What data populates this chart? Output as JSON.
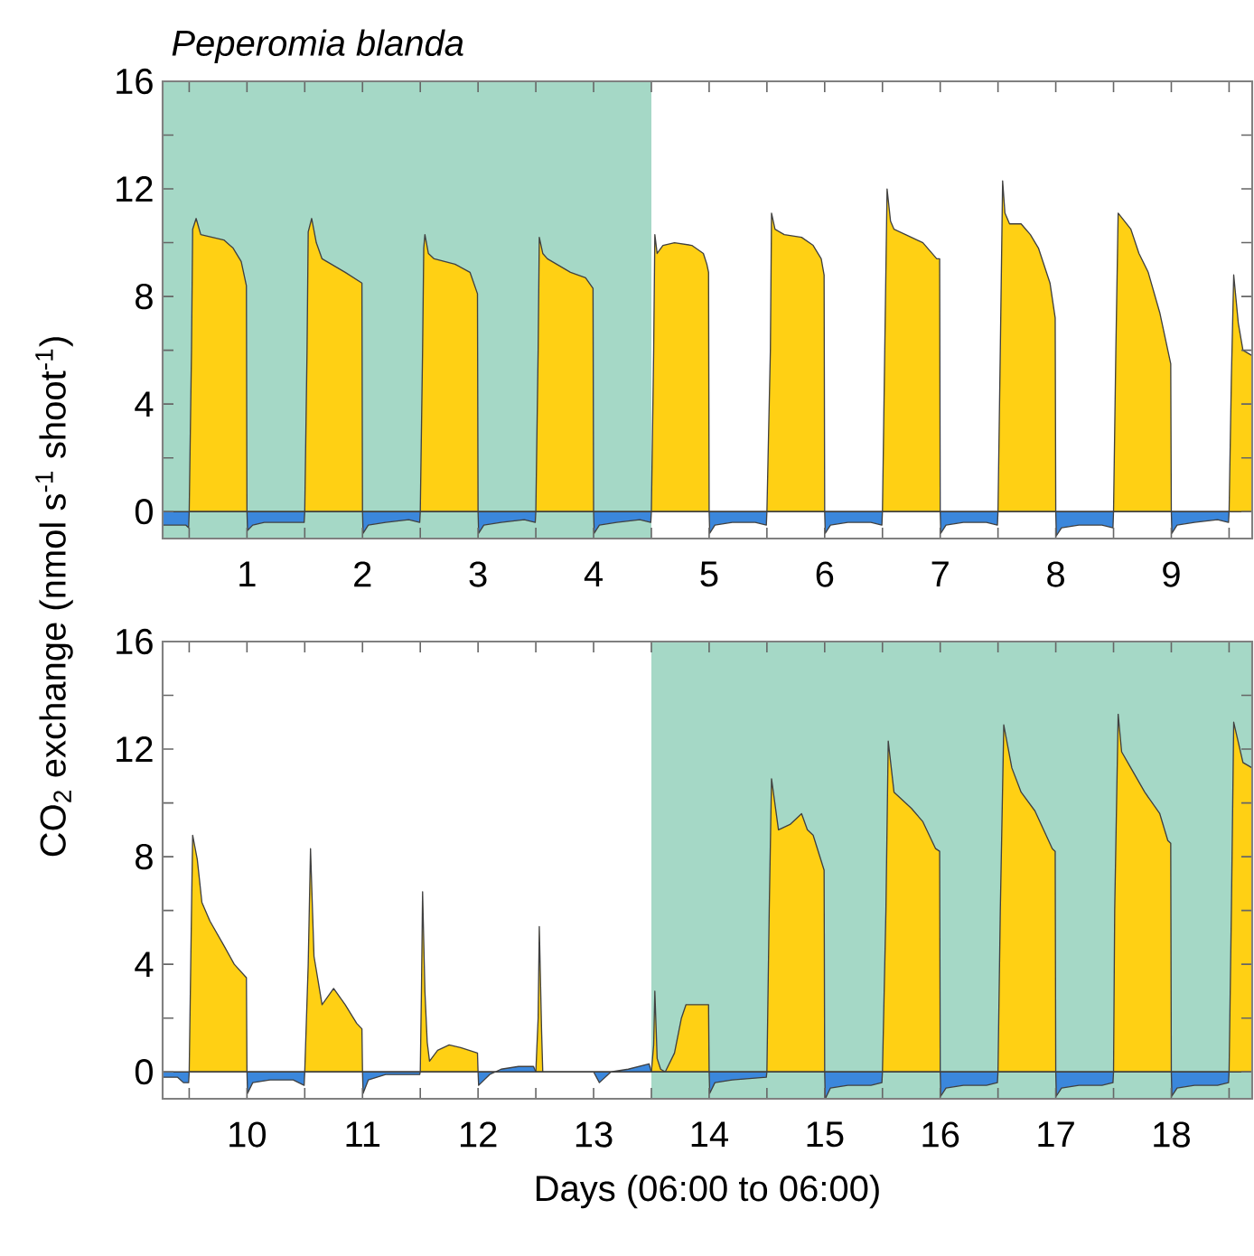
{
  "chart_data": [
    {
      "type": "area",
      "title": "Peperomia blanda",
      "ylabel": "CO$_{2}$ exchange (nmol s$^{-1}$ shoot$^{-1}$)",
      "xlim": [
        0.27,
        9.7
      ],
      "ylim": [
        -1,
        16
      ],
      "xticks": [
        {
          "value": 0.5,
          "label": null
        },
        1,
        {
          "value": 1.5,
          "label": null
        },
        2,
        {
          "value": 2.5,
          "label": null
        },
        3,
        {
          "value": 3.5,
          "label": null
        },
        4,
        {
          "value": 4.5,
          "label": null
        },
        5,
        {
          "value": 5.5,
          "label": null
        },
        6,
        {
          "value": 6.5,
          "label": null
        },
        7,
        {
          "value": 7.5,
          "label": null
        },
        8,
        {
          "value": 8.5,
          "label": null
        },
        9,
        {
          "value": 9.5,
          "label": null
        }
      ],
      "yticks": [
        0,
        {
          "value": 2,
          "label": null
        },
        4,
        {
          "value": 6,
          "label": null
        },
        8,
        {
          "value": 10,
          "label": null
        },
        12,
        {
          "value": 14,
          "label": null
        },
        16
      ],
      "bands": [
        {
          "axis": "x",
          "from": 0.27,
          "to": 4.5,
          "color": "#a5d8c6"
        }
      ],
      "series": [
        {
          "color": "#ffd014",
          "x": [
            0.5,
            0.52,
            0.53,
            0.56,
            0.6,
            0.7,
            0.8,
            0.88,
            0.95,
            0.995,
            1.0,
            1.5,
            1.52,
            1.53,
            1.56,
            1.6,
            1.65,
            1.85,
            1.995,
            2.0,
            2.5,
            2.52,
            2.53,
            2.54,
            2.57,
            2.62,
            2.8,
            2.93,
            2.995,
            3.0,
            3.5,
            3.52,
            3.53,
            3.56,
            3.6,
            3.8,
            3.93,
            3.995,
            4.0,
            4.5,
            4.52,
            4.53,
            4.55,
            4.6,
            4.7,
            4.85,
            4.95,
            4.98,
            4.995,
            5.0,
            5.5,
            5.53,
            5.54,
            5.57,
            5.65,
            5.8,
            5.9,
            5.97,
            5.995,
            6.0,
            6.5,
            6.52,
            6.54,
            6.57,
            6.6,
            6.7,
            6.85,
            6.97,
            6.995,
            7.0,
            7.5,
            7.52,
            7.54,
            7.56,
            7.6,
            7.7,
            7.78,
            7.85,
            7.95,
            7.995,
            8.0,
            8.5,
            8.52,
            8.54,
            8.65,
            8.72,
            8.8,
            8.9,
            8.995,
            9.0,
            9.5,
            9.52,
            9.54,
            9.58,
            9.62,
            9.7
          ],
          "values": [
            0,
            6,
            10.5,
            10.9,
            10.3,
            10.2,
            10.1,
            9.8,
            9.3,
            8.4,
            0,
            0,
            6,
            10.4,
            10.9,
            10.0,
            9.4,
            8.9,
            8.5,
            0,
            0,
            6,
            9.8,
            10.3,
            9.6,
            9.4,
            9.2,
            8.9,
            8.1,
            0,
            0,
            6,
            10.2,
            9.6,
            9.4,
            8.9,
            8.7,
            8.3,
            0,
            0,
            6,
            10.3,
            9.6,
            9.9,
            10.0,
            9.9,
            9.6,
            9.2,
            8.9,
            0,
            0,
            6,
            11.1,
            10.5,
            10.3,
            10.2,
            9.9,
            9.4,
            8.8,
            0,
            0,
            6,
            12.0,
            10.8,
            10.5,
            10.3,
            10.0,
            9.4,
            9.4,
            0,
            0,
            6,
            12.3,
            11.1,
            10.7,
            10.7,
            10.3,
            9.8,
            8.5,
            7.2,
            0,
            0,
            6,
            11.1,
            10.5,
            9.6,
            8.9,
            7.4,
            5.5,
            0,
            0,
            5,
            8.8,
            7.0,
            6.0,
            5.8
          ]
        },
        {
          "color": "#3b87dc",
          "x": [
            0.27,
            0.4,
            0.47,
            0.495,
            0.5,
            1.0,
            1.005,
            1.05,
            1.15,
            1.3,
            1.45,
            1.495,
            1.5,
            2.0,
            2.005,
            2.05,
            2.2,
            2.4,
            2.495,
            2.5,
            3.0,
            3.005,
            3.05,
            3.2,
            3.4,
            3.495,
            3.5,
            4.0,
            4.005,
            4.05,
            4.2,
            4.4,
            4.495,
            4.5,
            5.0,
            5.005,
            5.05,
            5.2,
            5.4,
            5.495,
            5.5,
            6.0,
            6.005,
            6.05,
            6.2,
            6.4,
            6.495,
            6.5,
            7.0,
            7.005,
            7.05,
            7.2,
            7.4,
            7.495,
            7.5,
            8.0,
            8.005,
            8.05,
            8.2,
            8.4,
            8.495,
            8.5,
            9.0,
            9.005,
            9.05,
            9.2,
            9.4,
            9.495,
            9.5
          ],
          "values": [
            -0.5,
            -0.5,
            -0.5,
            -0.6,
            0,
            0,
            -0.7,
            -0.5,
            -0.4,
            -0.4,
            -0.4,
            -0.4,
            0,
            0,
            -0.8,
            -0.5,
            -0.4,
            -0.3,
            -0.4,
            0,
            0,
            -0.8,
            -0.5,
            -0.4,
            -0.3,
            -0.4,
            0,
            0,
            -0.8,
            -0.5,
            -0.4,
            -0.3,
            -0.4,
            0,
            0,
            -0.8,
            -0.5,
            -0.4,
            -0.4,
            -0.5,
            0,
            0,
            -0.8,
            -0.5,
            -0.4,
            -0.4,
            -0.5,
            0,
            0,
            -0.8,
            -0.5,
            -0.4,
            -0.4,
            -0.5,
            0,
            0,
            -0.9,
            -0.6,
            -0.5,
            -0.5,
            -0.6,
            0,
            0,
            -0.8,
            -0.5,
            -0.4,
            -0.3,
            -0.4,
            0
          ]
        }
      ]
    },
    {
      "type": "area",
      "xlabel": "Days (06:00 to 06:00)",
      "xlim": [
        9.27,
        18.7
      ],
      "ylim": [
        -1,
        16
      ],
      "xticks": [
        {
          "value": 9.5,
          "label": null
        },
        10,
        {
          "value": 10.5,
          "label": null
        },
        11,
        {
          "value": 11.5,
          "label": null
        },
        12,
        {
          "value": 12.5,
          "label": null
        },
        13,
        {
          "value": 13.5,
          "label": null
        },
        14,
        {
          "value": 14.5,
          "label": null
        },
        15,
        {
          "value": 15.5,
          "label": null
        },
        16,
        {
          "value": 16.5,
          "label": null
        },
        17,
        {
          "value": 17.5,
          "label": null
        },
        18,
        {
          "value": 18.5,
          "label": null
        }
      ],
      "yticks": [
        0,
        {
          "value": 2,
          "label": null
        },
        4,
        {
          "value": 6,
          "label": null
        },
        8,
        {
          "value": 10,
          "label": null
        },
        12,
        {
          "value": 14,
          "label": null
        },
        16
      ],
      "bands": [
        {
          "axis": "x",
          "from": 13.5,
          "to": 18.7,
          "color": "#a5d8c6"
        }
      ],
      "series": [
        {
          "color": "#ffd014",
          "x": [
            9.5,
            9.52,
            9.53,
            9.57,
            9.61,
            9.68,
            9.8,
            9.89,
            9.995,
            10.0,
            10.5,
            10.53,
            10.55,
            10.58,
            10.65,
            10.75,
            10.85,
            10.95,
            10.995,
            11.0,
            11.5,
            11.51,
            11.52,
            11.54,
            11.56,
            11.58,
            11.65,
            11.75,
            11.85,
            11.995,
            12.0,
            12.5,
            12.52,
            12.53,
            12.55,
            12.56,
            13.5,
            13.52,
            13.53,
            13.55,
            13.58,
            13.62,
            13.7,
            13.76,
            13.8,
            13.995,
            14.0,
            14.5,
            14.52,
            14.54,
            14.6,
            14.7,
            14.8,
            14.85,
            14.9,
            14.995,
            15.0,
            15.5,
            15.53,
            15.55,
            15.6,
            15.75,
            15.85,
            15.96,
            15.995,
            16.0,
            16.5,
            16.52,
            16.55,
            16.62,
            16.7,
            16.82,
            16.97,
            16.995,
            17.0,
            17.5,
            17.51,
            17.54,
            17.57,
            17.65,
            17.77,
            17.9,
            17.97,
            17.995,
            18.0,
            18.5,
            18.52,
            18.54,
            18.62,
            18.7
          ],
          "values": [
            0,
            6,
            8.8,
            7.9,
            6.3,
            5.6,
            4.7,
            4.0,
            3.5,
            0,
            0,
            4,
            8.3,
            4.3,
            2.5,
            3.1,
            2.5,
            1.8,
            1.6,
            0,
            0,
            3,
            6.7,
            3,
            1.1,
            0.4,
            0.8,
            1.0,
            0.9,
            0.7,
            0,
            0,
            2,
            5.4,
            1.5,
            0,
            0,
            1,
            3.0,
            0.5,
            0.1,
            0,
            0.7,
            2.0,
            2.5,
            2.5,
            0,
            0,
            6,
            10.9,
            9.0,
            9.2,
            9.6,
            9.0,
            8.8,
            7.5,
            0,
            0,
            6,
            12.3,
            10.4,
            9.8,
            9.3,
            8.3,
            8.2,
            0,
            0,
            6,
            12.9,
            11.3,
            10.4,
            9.7,
            8.3,
            8.2,
            0,
            0,
            6,
            13.3,
            11.9,
            11.3,
            10.4,
            9.6,
            8.6,
            8.5,
            0,
            0,
            6,
            13.0,
            11.5,
            11.3
          ]
        },
        {
          "color": "#3b87dc",
          "x": [
            9.27,
            9.4,
            9.45,
            9.495,
            9.5,
            10.0,
            10.005,
            10.05,
            10.2,
            10.4,
            10.495,
            10.5,
            11.0,
            11.005,
            11.05,
            11.2,
            11.495,
            11.5,
            12.0,
            12.005,
            12.1,
            12.2,
            12.35,
            12.48,
            12.5,
            13.0,
            13.05,
            13.15,
            13.3,
            13.48,
            13.5,
            14.0,
            14.005,
            14.05,
            14.2,
            14.495,
            14.5,
            15.0,
            15.005,
            15.05,
            15.2,
            15.4,
            15.495,
            15.5,
            16.0,
            16.005,
            16.05,
            16.2,
            16.4,
            16.495,
            16.5,
            17.0,
            17.005,
            17.05,
            17.2,
            17.4,
            17.495,
            17.5,
            18.0,
            18.005,
            18.05,
            18.2,
            18.4,
            18.495,
            18.5
          ],
          "values": [
            -0.2,
            -0.2,
            -0.4,
            -0.4,
            0,
            0,
            -0.8,
            -0.4,
            -0.3,
            -0.3,
            -0.5,
            0,
            0,
            -0.8,
            -0.3,
            -0.1,
            -0.1,
            0,
            0,
            -0.5,
            -0.1,
            0.1,
            0.2,
            0.2,
            0,
            0,
            -0.4,
            0,
            0.1,
            0.3,
            0,
            0,
            -0.8,
            -0.4,
            -0.3,
            -0.2,
            0,
            0,
            -1.0,
            -0.6,
            -0.5,
            -0.5,
            -0.4,
            0,
            0,
            -0.9,
            -0.6,
            -0.5,
            -0.5,
            -0.4,
            0,
            0,
            -0.9,
            -0.6,
            -0.5,
            -0.5,
            -0.4,
            0,
            0,
            -0.9,
            -0.6,
            -0.5,
            -0.5,
            -0.4,
            0
          ]
        }
      ]
    }
  ]
}
